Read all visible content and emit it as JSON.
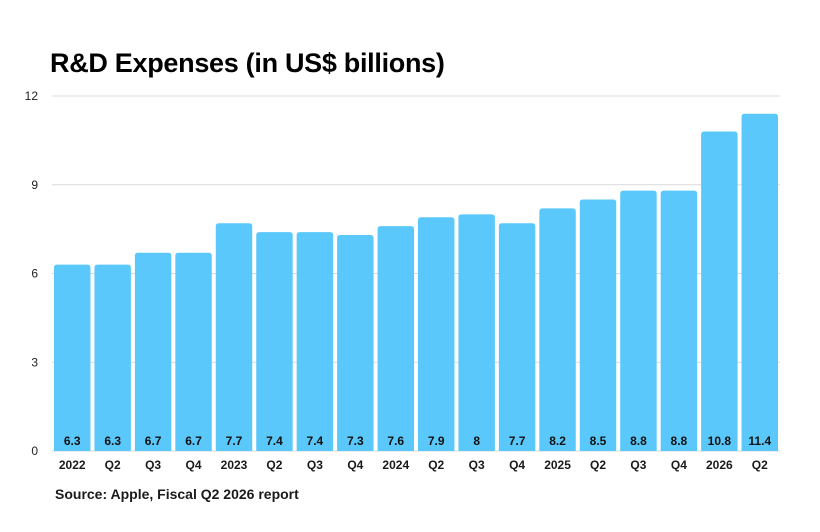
{
  "chart_data": {
    "type": "bar",
    "title": "R&D Expenses (in US$ billions)",
    "source": "Source: Apple, Fiscal Q2 2026 report",
    "xlabel": "",
    "ylabel": "",
    "categories": [
      "2022",
      "Q2",
      "Q3",
      "Q4",
      "2023",
      "Q2",
      "Q3",
      "Q4",
      "2024",
      "Q2",
      "Q3",
      "Q4",
      "2025",
      "Q2",
      "Q3",
      "Q4",
      "2026",
      "Q2"
    ],
    "values": [
      6.3,
      6.3,
      6.7,
      6.7,
      7.7,
      7.4,
      7.4,
      7.3,
      7.6,
      7.9,
      8,
      7.7,
      8.2,
      8.5,
      8.8,
      8.8,
      10.8,
      11.4
    ],
    "value_labels": [
      "6.3",
      "6.3",
      "6.7",
      "6.7",
      "7.7",
      "7.4",
      "7.4",
      "7.3",
      "7.6",
      "7.9",
      "8",
      "7.7",
      "8.2",
      "8.5",
      "8.8",
      "8.8",
      "10.8",
      "11.4"
    ],
    "ylim": [
      0,
      12
    ],
    "yticks": [
      0,
      3,
      6,
      9,
      12
    ],
    "ytick_labels": [
      "0",
      "3",
      "6",
      "9",
      "12"
    ],
    "grid": true,
    "legend": "none",
    "bar_color": "#5ac8fa",
    "grid_color": "#d9d9d9"
  }
}
